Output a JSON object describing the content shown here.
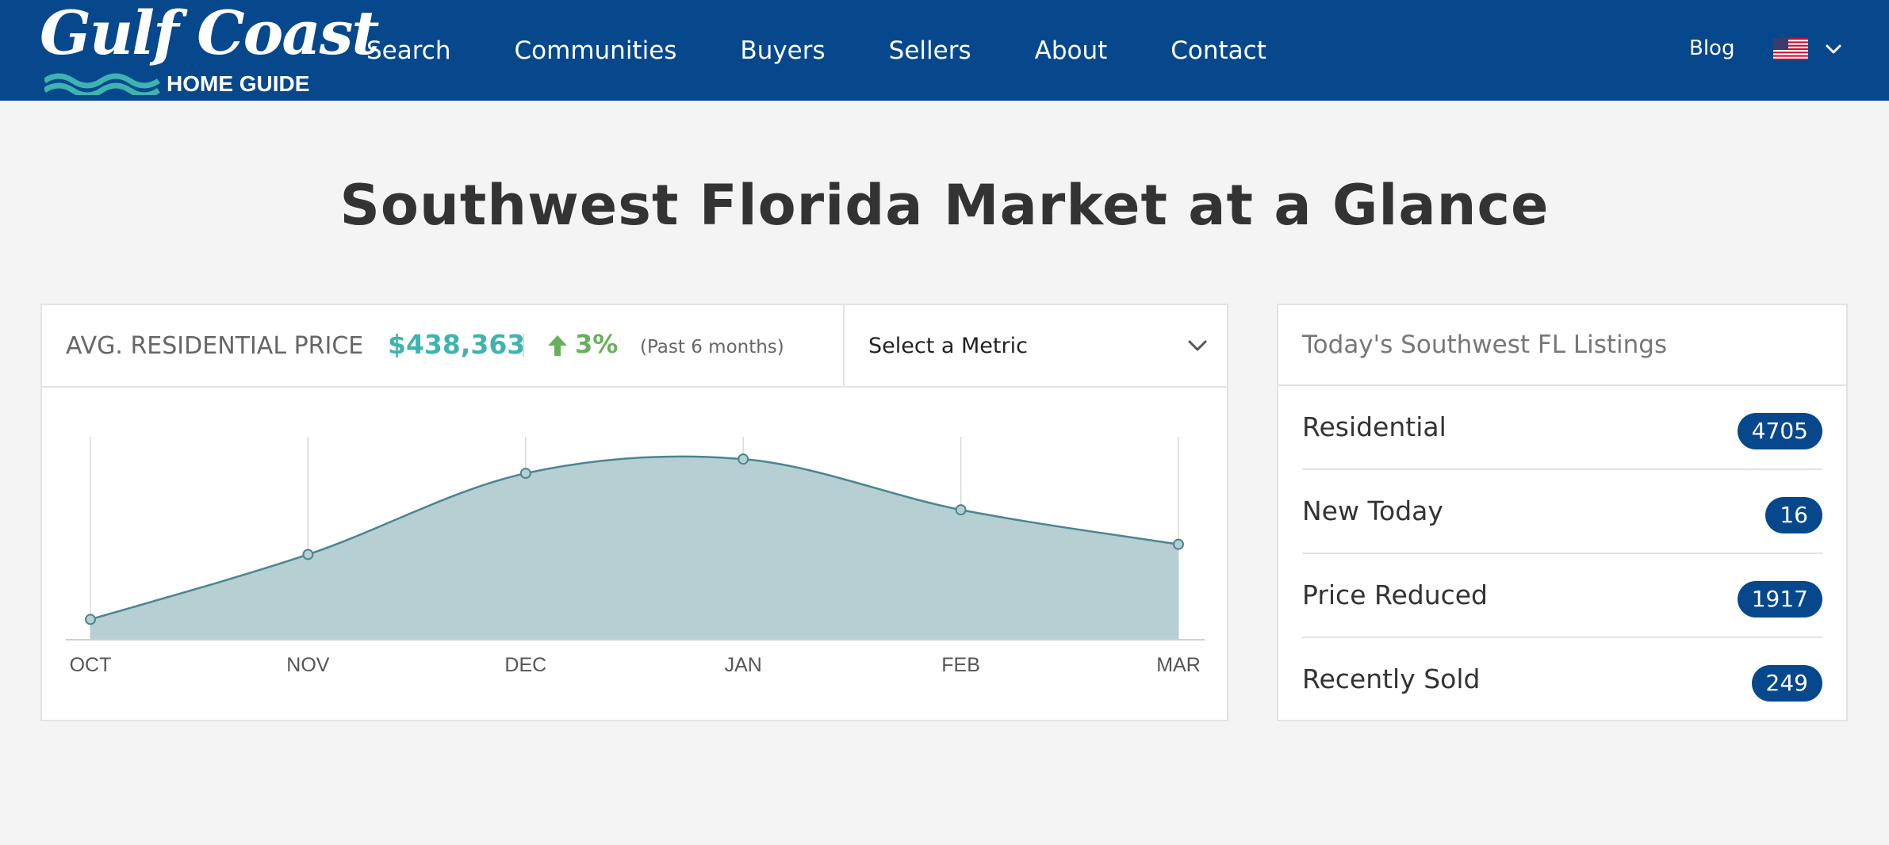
{
  "header": {
    "logo": {
      "script": "Gulf Coast",
      "sub": "HOME GUIDE"
    },
    "nav": [
      "Search",
      "Communities",
      "Buyers",
      "Sellers",
      "About",
      "Contact"
    ],
    "blog": "Blog",
    "language_icon": "us-flag-icon",
    "colors": {
      "background": "#07488d",
      "logo_wave": "#3fb3b0"
    }
  },
  "page": {
    "title": "Southwest Florida Market at a Glance"
  },
  "market": {
    "metric_label": "AVG. RESIDENTIAL PRICE",
    "metric_value": "$438,363",
    "change": "3%",
    "change_direction": "up",
    "period": "(Past 6 months)",
    "select_label": "Select a Metric",
    "colors": {
      "value": "#3fb3b0",
      "change": "#6ab05a",
      "area_fill": "#b5cfd3",
      "line": "#4a8591"
    }
  },
  "chart_data": {
    "type": "area",
    "title": "",
    "categories": [
      "OCT",
      "NOV",
      "DEC",
      "JAN",
      "FEB",
      "MAR"
    ],
    "values": [
      0.1,
      0.42,
      0.82,
      0.89,
      0.64,
      0.47
    ],
    "ylim": [
      0,
      1
    ],
    "grid": "vertical",
    "y_axis_labels": false
  },
  "listings": {
    "title": "Today's Southwest FL Listings",
    "items": [
      {
        "label": "Residential",
        "count": "4705"
      },
      {
        "label": "New Today",
        "count": "16"
      },
      {
        "label": "Price Reduced",
        "count": "1917"
      },
      {
        "label": "Recently Sold",
        "count": "249"
      }
    ]
  }
}
